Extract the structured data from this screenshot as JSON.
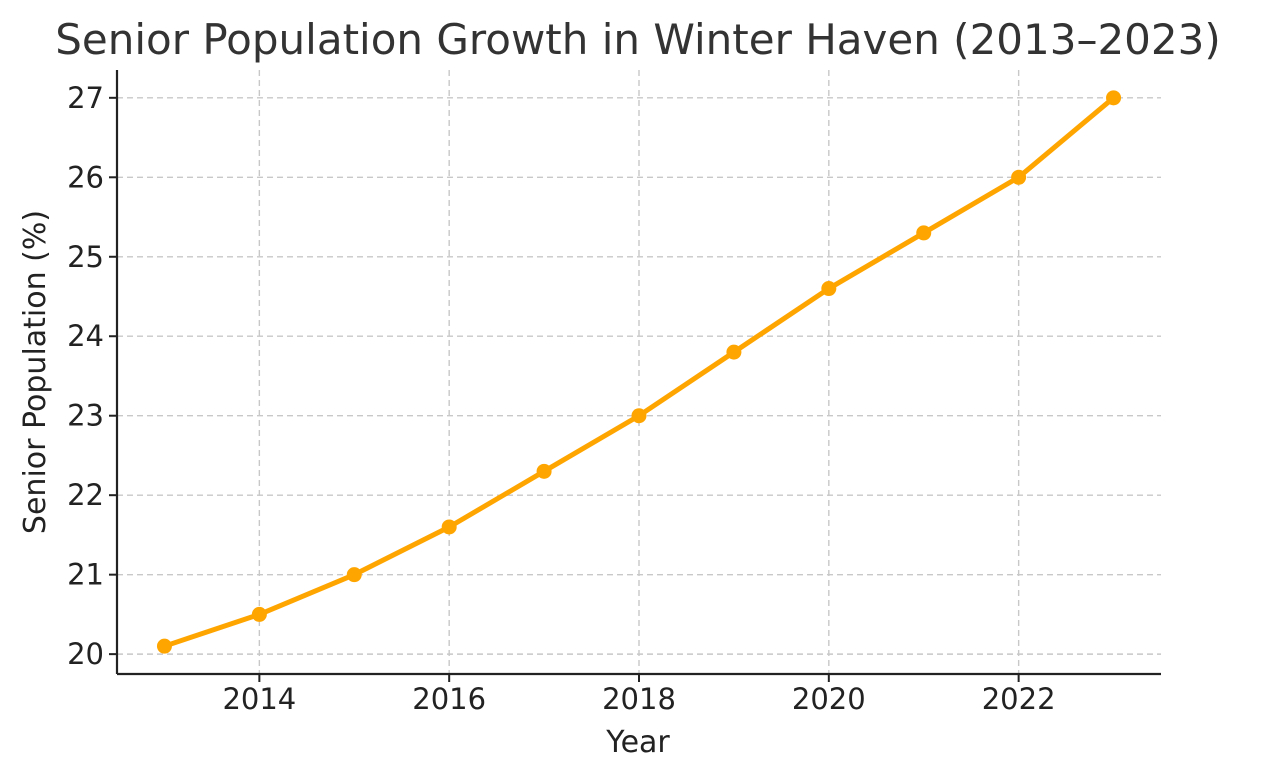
{
  "chart_data": {
    "type": "line",
    "title": "Senior Population Growth in Winter Haven (2013–2023)",
    "xlabel": "Year",
    "ylabel": "Senior Population (%)",
    "x": [
      2013,
      2014,
      2015,
      2016,
      2017,
      2018,
      2019,
      2020,
      2021,
      2022,
      2023
    ],
    "series": [
      {
        "values": [
          20.1,
          20.5,
          21.0,
          21.6,
          22.3,
          23.0,
          23.8,
          24.6,
          25.3,
          26.0,
          27.0
        ],
        "color": "#FFA500"
      }
    ],
    "xlim": [
      2012.5,
      2023.5
    ],
    "ylim": [
      19.75,
      27.35
    ],
    "xticks": [
      "2014",
      "2016",
      "2018",
      "2020",
      "2022"
    ],
    "yticks": [
      "20",
      "21",
      "22",
      "23",
      "24",
      "25",
      "26",
      "27"
    ],
    "grid": true,
    "legend": "none"
  }
}
